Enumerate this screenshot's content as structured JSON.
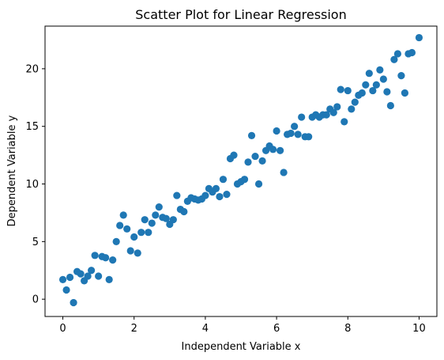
{
  "chart_data": {
    "type": "scatter",
    "title": "Scatter Plot for Linear Regression",
    "xlabel": "Independent Variable x",
    "ylabel": "Dependent Variable y",
    "xlim": [
      -0.5,
      10.5
    ],
    "ylim": [
      -1.5,
      23.7
    ],
    "xticks": [
      0,
      2,
      4,
      6,
      8,
      10
    ],
    "yticks": [
      0,
      5,
      10,
      15,
      20
    ],
    "grid": false,
    "marker_color": "#1f77b4",
    "series": [
      {
        "points": [
          [
            0.0,
            1.7
          ],
          [
            0.1,
            0.8
          ],
          [
            0.2,
            1.9
          ],
          [
            0.3,
            -0.3
          ],
          [
            0.4,
            2.4
          ],
          [
            0.5,
            2.2
          ],
          [
            0.6,
            1.6
          ],
          [
            0.7,
            2.0
          ],
          [
            0.8,
            2.5
          ],
          [
            0.9,
            3.8
          ],
          [
            1.0,
            2.0
          ],
          [
            1.1,
            3.7
          ],
          [
            1.2,
            3.6
          ],
          [
            1.3,
            1.7
          ],
          [
            1.4,
            3.4
          ],
          [
            1.5,
            5.0
          ],
          [
            1.6,
            6.4
          ],
          [
            1.7,
            7.3
          ],
          [
            1.8,
            6.1
          ],
          [
            1.9,
            4.2
          ],
          [
            2.0,
            5.4
          ],
          [
            2.1,
            4.0
          ],
          [
            2.2,
            5.8
          ],
          [
            2.3,
            6.9
          ],
          [
            2.4,
            5.8
          ],
          [
            2.5,
            6.6
          ],
          [
            2.6,
            7.3
          ],
          [
            2.7,
            8.0
          ],
          [
            2.8,
            7.1
          ],
          [
            2.9,
            7.0
          ],
          [
            3.0,
            6.5
          ],
          [
            3.1,
            6.9
          ],
          [
            3.2,
            9.0
          ],
          [
            3.3,
            7.8
          ],
          [
            3.4,
            7.6
          ],
          [
            3.5,
            8.5
          ],
          [
            3.6,
            8.8
          ],
          [
            3.7,
            8.7
          ],
          [
            3.8,
            8.6
          ],
          [
            3.9,
            8.7
          ],
          [
            4.0,
            9.0
          ],
          [
            4.1,
            9.6
          ],
          [
            4.2,
            9.3
          ],
          [
            4.3,
            9.6
          ],
          [
            4.4,
            8.9
          ],
          [
            4.5,
            10.4
          ],
          [
            4.6,
            9.1
          ],
          [
            4.7,
            12.2
          ],
          [
            4.8,
            12.5
          ],
          [
            4.9,
            10.0
          ],
          [
            5.0,
            10.2
          ],
          [
            5.1,
            10.4
          ],
          [
            5.2,
            11.9
          ],
          [
            5.3,
            14.2
          ],
          [
            5.4,
            12.4
          ],
          [
            5.5,
            10.0
          ],
          [
            5.6,
            12.0
          ],
          [
            5.7,
            12.9
          ],
          [
            5.8,
            13.3
          ],
          [
            5.9,
            13.0
          ],
          [
            6.0,
            14.6
          ],
          [
            6.1,
            12.9
          ],
          [
            6.2,
            11.0
          ],
          [
            6.3,
            14.3
          ],
          [
            6.4,
            14.4
          ],
          [
            6.5,
            15.0
          ],
          [
            6.6,
            14.3
          ],
          [
            6.7,
            15.8
          ],
          [
            6.8,
            14.1
          ],
          [
            6.9,
            14.1
          ],
          [
            7.0,
            15.8
          ],
          [
            7.1,
            16.0
          ],
          [
            7.2,
            15.8
          ],
          [
            7.3,
            16.0
          ],
          [
            7.4,
            16.0
          ],
          [
            7.5,
            16.5
          ],
          [
            7.6,
            16.2
          ],
          [
            7.7,
            16.7
          ],
          [
            7.8,
            18.2
          ],
          [
            7.9,
            15.4
          ],
          [
            8.0,
            18.1
          ],
          [
            8.1,
            16.5
          ],
          [
            8.2,
            17.1
          ],
          [
            8.3,
            17.7
          ],
          [
            8.4,
            17.9
          ],
          [
            8.5,
            18.6
          ],
          [
            8.6,
            19.6
          ],
          [
            8.7,
            18.1
          ],
          [
            8.8,
            18.6
          ],
          [
            8.9,
            19.9
          ],
          [
            9.0,
            19.1
          ],
          [
            9.1,
            18.0
          ],
          [
            9.2,
            16.8
          ],
          [
            9.3,
            20.8
          ],
          [
            9.4,
            21.3
          ],
          [
            9.5,
            19.4
          ],
          [
            9.6,
            17.9
          ],
          [
            9.7,
            21.3
          ],
          [
            9.8,
            21.4
          ],
          [
            10.0,
            22.7
          ]
        ]
      }
    ]
  }
}
